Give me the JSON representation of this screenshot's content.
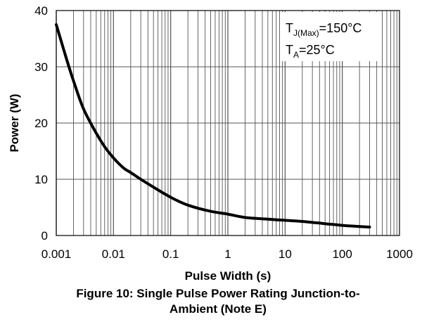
{
  "chart_data": {
    "type": "line",
    "x_scale": "log",
    "xlim": [
      0.001,
      1000
    ],
    "ylim": [
      0,
      40
    ],
    "grid": true,
    "xlabel": "Pulse Width (s)",
    "ylabel": "Power (W)",
    "x_tick_labels": [
      "0.001",
      "0.01",
      "0.1",
      "1",
      "10",
      "100",
      "1000"
    ],
    "y_tick_labels": [
      "0",
      "10",
      "20",
      "30",
      "40"
    ],
    "caption_line1": "Figure 10: Single Pulse Power Rating Junction-to-",
    "caption_line2": "Ambient (Note E)",
    "annotation": {
      "line1_main": "T",
      "line1_sub": "J(Max)",
      "line1_rest": "=150°C",
      "line2_main": "T",
      "line2_sub": "A",
      "line2_rest": "=25°C"
    },
    "series": [
      {
        "x": [
          0.001,
          0.0015,
          0.002,
          0.003,
          0.005,
          0.007,
          0.01,
          0.015,
          0.02,
          0.03,
          0.05,
          0.1,
          0.2,
          0.5,
          1,
          2,
          5,
          10,
          20,
          50,
          100,
          200,
          300
        ],
        "y": [
          37.5,
          31.5,
          27.5,
          22.5,
          18.2,
          15.8,
          13.8,
          12.0,
          11.2,
          10.0,
          8.6,
          6.8,
          5.4,
          4.3,
          3.8,
          3.2,
          2.9,
          2.7,
          2.5,
          2.1,
          1.8,
          1.6,
          1.5
        ]
      }
    ]
  }
}
